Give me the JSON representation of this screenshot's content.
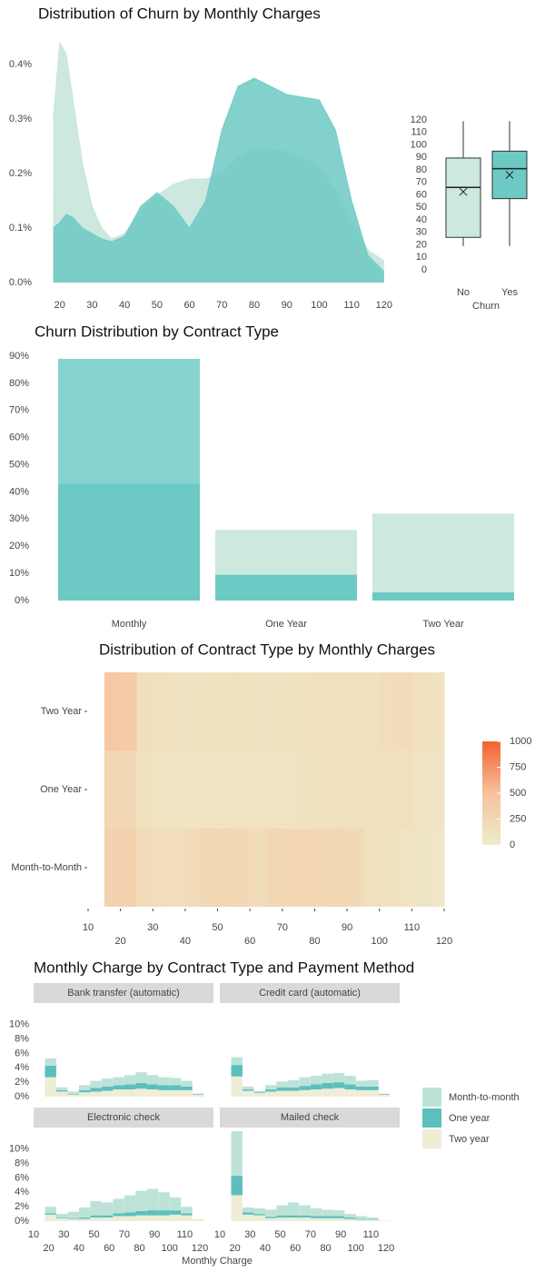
{
  "chart_data": [
    {
      "type": "area",
      "title": "Distribution of Churn by Monthly Charges",
      "x": [
        18,
        20,
        22,
        24,
        27,
        30,
        33,
        36,
        40,
        45,
        50,
        55,
        60,
        65,
        70,
        75,
        80,
        85,
        90,
        95,
        100,
        105,
        110,
        115,
        120
      ],
      "series": [
        {
          "color": "#cce8df",
          "values": [
            0.3,
            0.44,
            0.42,
            0.34,
            0.22,
            0.14,
            0.1,
            0.08,
            0.09,
            0.13,
            0.16,
            0.18,
            0.19,
            0.19,
            0.2,
            0.23,
            0.245,
            0.245,
            0.24,
            0.23,
            0.21,
            0.17,
            0.11,
            0.06,
            0.04
          ]
        },
        {
          "color": "#6cc9c4",
          "values": [
            0.1,
            0.11,
            0.125,
            0.12,
            0.1,
            0.09,
            0.08,
            0.075,
            0.085,
            0.14,
            0.165,
            0.14,
            0.1,
            0.15,
            0.28,
            0.36,
            0.375,
            0.36,
            0.345,
            0.34,
            0.335,
            0.28,
            0.15,
            0.05,
            0.02
          ]
        }
      ],
      "xlim": [
        17,
        122
      ],
      "xticks": [
        20,
        30,
        40,
        50,
        60,
        70,
        80,
        90,
        100,
        110,
        120
      ],
      "ylim": [
        0,
        0.45
      ],
      "yticks": [
        {
          "value": 0,
          "label": "0.0%"
        },
        {
          "value": 0.1,
          "label": "0.1%"
        },
        {
          "value": 0.2,
          "label": "0.2%"
        },
        {
          "value": 0.3,
          "label": "0.3%"
        },
        {
          "value": 0.4,
          "label": "0.4%"
        }
      ]
    },
    {
      "type": "box",
      "xlabel": "Churn",
      "categories": [
        "No",
        "Yes"
      ],
      "colors": [
        "#cce8df",
        "#6cc9c4"
      ],
      "min": [
        19,
        19
      ],
      "q1": [
        26,
        57
      ],
      "median": [
        66,
        81
      ],
      "q3": [
        89.5,
        95
      ],
      "max": [
        119,
        119
      ],
      "mean": [
        62.5,
        76
      ],
      "ylim": [
        0,
        120
      ],
      "yticks": [
        0,
        10,
        20,
        30,
        40,
        50,
        60,
        70,
        80,
        90,
        100,
        110,
        120
      ]
    },
    {
      "type": "bar",
      "title": "Churn Distribution by Contract Type",
      "categories": [
        "Monthly",
        "One Year",
        "Two Year"
      ],
      "series": [
        {
          "colors": [
            "#86d3cf",
            "#cde8df",
            "#cde8df"
          ],
          "values": [
            89,
            26,
            32
          ]
        },
        {
          "colors": [
            "#6cc9c4",
            "#6cc9c4",
            "#6cc9c4"
          ],
          "values": [
            43,
            9.5,
            3
          ]
        }
      ],
      "ylim": [
        0,
        90
      ],
      "yticks": [
        {
          "value": 0,
          "label": "0%"
        },
        {
          "value": 10,
          "label": "10%"
        },
        {
          "value": 20,
          "label": "20%"
        },
        {
          "value": 30,
          "label": "30%"
        },
        {
          "value": 40,
          "label": "40%"
        },
        {
          "value": 50,
          "label": "50%"
        },
        {
          "value": 60,
          "label": "60%"
        },
        {
          "value": 70,
          "label": "70%"
        },
        {
          "value": 80,
          "label": "80%"
        },
        {
          "value": 90,
          "label": "90%"
        }
      ]
    },
    {
      "type": "heatmap",
      "title": "Distribution of Contract Type by Monthly Charges",
      "categories": [
        "Month-to-Month",
        "One Year",
        "Two Year"
      ],
      "bins": [
        15,
        20,
        25,
        30,
        35,
        40,
        45,
        50,
        55,
        60,
        65,
        70,
        75,
        80,
        85,
        90,
        95,
        100,
        105,
        110,
        115,
        120
      ],
      "values": [
        [
          300,
          310,
          190,
          170,
          160,
          200,
          240,
          260,
          230,
          180,
          240,
          250,
          250,
          250,
          240,
          220,
          140,
          120,
          100,
          80,
          60
        ],
        [
          260,
          240,
          120,
          100,
          90,
          90,
          100,
          100,
          100,
          100,
          100,
          100,
          110,
          120,
          130,
          130,
          140,
          140,
          130,
          100,
          80
        ],
        [
          420,
          400,
          160,
          140,
          110,
          110,
          120,
          120,
          120,
          110,
          110,
          120,
          120,
          150,
          150,
          130,
          130,
          170,
          190,
          130,
          110
        ]
      ],
      "xlim": [
        10,
        120
      ],
      "xticks": [
        10,
        20,
        30,
        40,
        50,
        60,
        70,
        80,
        90,
        100,
        110,
        120
      ],
      "clim": [
        0,
        1000
      ],
      "cticks": [
        0,
        250,
        500,
        750,
        1000
      ],
      "colors": [
        "#eeebca",
        "#f7c29d",
        "#f2622f"
      ]
    },
    {
      "type": "facet-histogram",
      "title": "Monthly Charge by Contract Type and Payment Method",
      "xlabel": "Monthly Charge",
      "series": [
        {
          "name": "Month-to-month",
          "color": "#bde3d8"
        },
        {
          "name": "One year",
          "color": "#5bc0bd"
        },
        {
          "name": "Two year",
          "color": "#efedd6"
        }
      ],
      "bins": [
        17.5,
        25,
        32.5,
        40,
        47.5,
        55,
        62.5,
        70,
        77.5,
        85,
        92.5,
        100,
        107.5,
        115,
        122.5
      ],
      "facets": [
        {
          "title": "Bank transfer (automatic)",
          "stacks": [
            [
              1.0,
              0.4,
              0.3,
              0.7,
              1.0,
              1.1,
              1.1,
              1.3,
              1.5,
              1.3,
              1.1,
              1.0,
              0.8,
              0
            ],
            [
              1.6,
              0.2,
              0.1,
              0.3,
              0.5,
              0.6,
              0.6,
              0.7,
              0.8,
              0.7,
              0.7,
              0.7,
              0.5,
              0.1
            ],
            [
              2.7,
              0.7,
              0.3,
              0.6,
              0.7,
              0.8,
              1.0,
              1.0,
              1.1,
              1.0,
              0.9,
              0.9,
              0.9,
              0.3
            ]
          ]
        },
        {
          "title": "Credit card (automatic)",
          "stacks": [
            [
              1.1,
              0.4,
              0.2,
              0.6,
              0.8,
              1.0,
              1.2,
              1.2,
              1.3,
              1.3,
              1.2,
              0.8,
              0.9,
              0
            ],
            [
              1.6,
              0.2,
              0.1,
              0.3,
              0.5,
              0.5,
              0.6,
              0.7,
              0.8,
              0.8,
              0.7,
              0.5,
              0.5,
              0.1
            ],
            [
              2.8,
              0.8,
              0.5,
              0.7,
              0.8,
              0.8,
              0.9,
              1.0,
              1.1,
              1.2,
              1.0,
              0.9,
              0.9,
              0.3
            ]
          ]
        },
        {
          "title": "Electronic check",
          "stacks": [
            [
              0.9,
              0.5,
              0.9,
              1.4,
              2.0,
              1.8,
              2.0,
              2.4,
              2.8,
              3.0,
              2.5,
              1.8,
              0.9,
              0
            ],
            [
              0.2,
              0.1,
              0.1,
              0.2,
              0.3,
              0.3,
              0.4,
              0.5,
              0.6,
              0.7,
              0.7,
              0.6,
              0.3,
              0
            ],
            [
              0.9,
              0.4,
              0.3,
              0.3,
              0.5,
              0.5,
              0.7,
              0.7,
              0.8,
              0.8,
              0.8,
              0.9,
              0.8,
              0.3
            ]
          ]
        },
        {
          "title": "Mailed check",
          "stacks": [
            [
              6.2,
              0.7,
              0.8,
              1.0,
              1.4,
              1.8,
              1.4,
              1.1,
              0.9,
              0.8,
              0.5,
              0.4,
              0.2,
              0
            ],
            [
              2.7,
              0.3,
              0.2,
              0.2,
              0.3,
              0.3,
              0.3,
              0.3,
              0.3,
              0.3,
              0.2,
              0.1,
              0.1,
              0
            ],
            [
              3.6,
              0.9,
              0.8,
              0.4,
              0.5,
              0.5,
              0.5,
              0.4,
              0.4,
              0.4,
              0.3,
              0.2,
              0.2,
              0.1
            ]
          ]
        }
      ],
      "xlim": [
        10,
        129
      ],
      "xticks": [
        10,
        20,
        30,
        40,
        50,
        60,
        70,
        80,
        90,
        100,
        110,
        120
      ],
      "ylim": [
        0,
        12.5
      ],
      "yticks": [
        {
          "value": 0,
          "label": "0%"
        },
        {
          "value": 2,
          "label": "2%"
        },
        {
          "value": 4,
          "label": "4%"
        },
        {
          "value": 6,
          "label": "6%"
        },
        {
          "value": 8,
          "label": "8%"
        },
        {
          "value": 10,
          "label": "10%"
        }
      ]
    }
  ]
}
